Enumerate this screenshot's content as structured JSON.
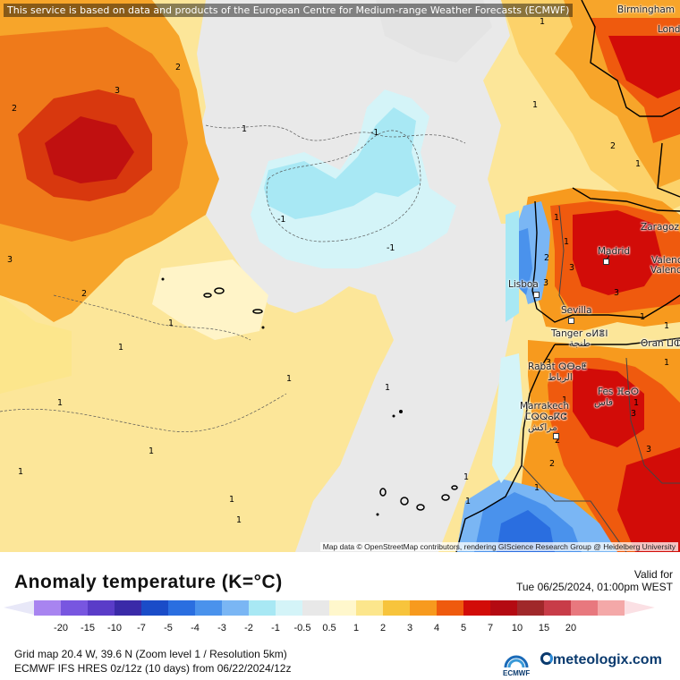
{
  "map": {
    "banner": "This service is based on data and products of the European Centre for Medium-range Weather Forecasts (ECMWF)",
    "attribution": "Map data © OpenStreetMap contributors, rendering GIScience Research Group @ Heidelberg University",
    "cities": {
      "birmingham": "Birmingham",
      "london": "Lond",
      "zaragoza": "Zaragoz",
      "madrid": "Madrid",
      "valencia1": "Valenc",
      "valencia2": "Valenc",
      "lisboa": "Lisboa",
      "sevilla": "Sevilla",
      "tanger": "Tanger ⴰⵍⴻⵏ",
      "tanger_ar": "طنجة",
      "oran": "Oran ⵡⵀ",
      "rabat": "Rabat ⵕⴱⴰⵟ",
      "rabat_ar": "الرباط",
      "fes": "Fes ⴼⴰⵙ",
      "fes_ar": "فاس",
      "marrakech": "Marrakech",
      "marrakech_tif": "ⵎⵕⵕⴰⴽⵛ",
      "marrakech_ar": "مراكش"
    },
    "contour_labels": [
      "2",
      "3",
      "2",
      "3",
      "2",
      "1",
      "1",
      "1",
      "1",
      "1",
      "1",
      "1",
      "1",
      "1",
      "1",
      "1",
      "1",
      "1",
      "-1",
      "-1",
      "-1",
      "1",
      "1",
      "2",
      "1",
      "1",
      "2",
      "2",
      "3",
      "3",
      "3",
      "1",
      "1",
      "1",
      "1",
      "1",
      "2",
      "3",
      "3",
      "3",
      "2",
      "1"
    ]
  },
  "legend": {
    "title": "Anomaly temperature (K=°C)",
    "valid_label": "Valid for",
    "valid_time": "Tue 06/25/2024, 01:00pm WEST",
    "colors": [
      "#a884f0",
      "#7856e0",
      "#5a3cc8",
      "#3a2aa8",
      "#1a4cc8",
      "#2a6ee0",
      "#4a92ec",
      "#7ab6f4",
      "#a8e8f4",
      "#d4f4f8",
      "#e8e8e8",
      "#fff7cc",
      "#fce68c",
      "#f7c43c",
      "#f79a1e",
      "#ef5a0e",
      "#d20c08",
      "#b40a12",
      "#a0282a",
      "#c83c48",
      "#e8787e",
      "#f4a8a8"
    ],
    "ticks": [
      "-20",
      "-15",
      "-10",
      "-7",
      "-5",
      "-4",
      "-3",
      "-2",
      "-1",
      "-0.5",
      "0.5",
      "1",
      "2",
      "3",
      "4",
      "5",
      "7",
      "10",
      "15",
      "20"
    ],
    "grid_info": "Grid map 20.4 W, 39.6 N (Zoom level 1 / Resolution 5km)",
    "model_info": "ECMWF IFS HRES 0z/12z (10 days) from 06/22/2024/12z",
    "ecmwf_label": "ECMWF",
    "brand": "meteologix.com"
  }
}
